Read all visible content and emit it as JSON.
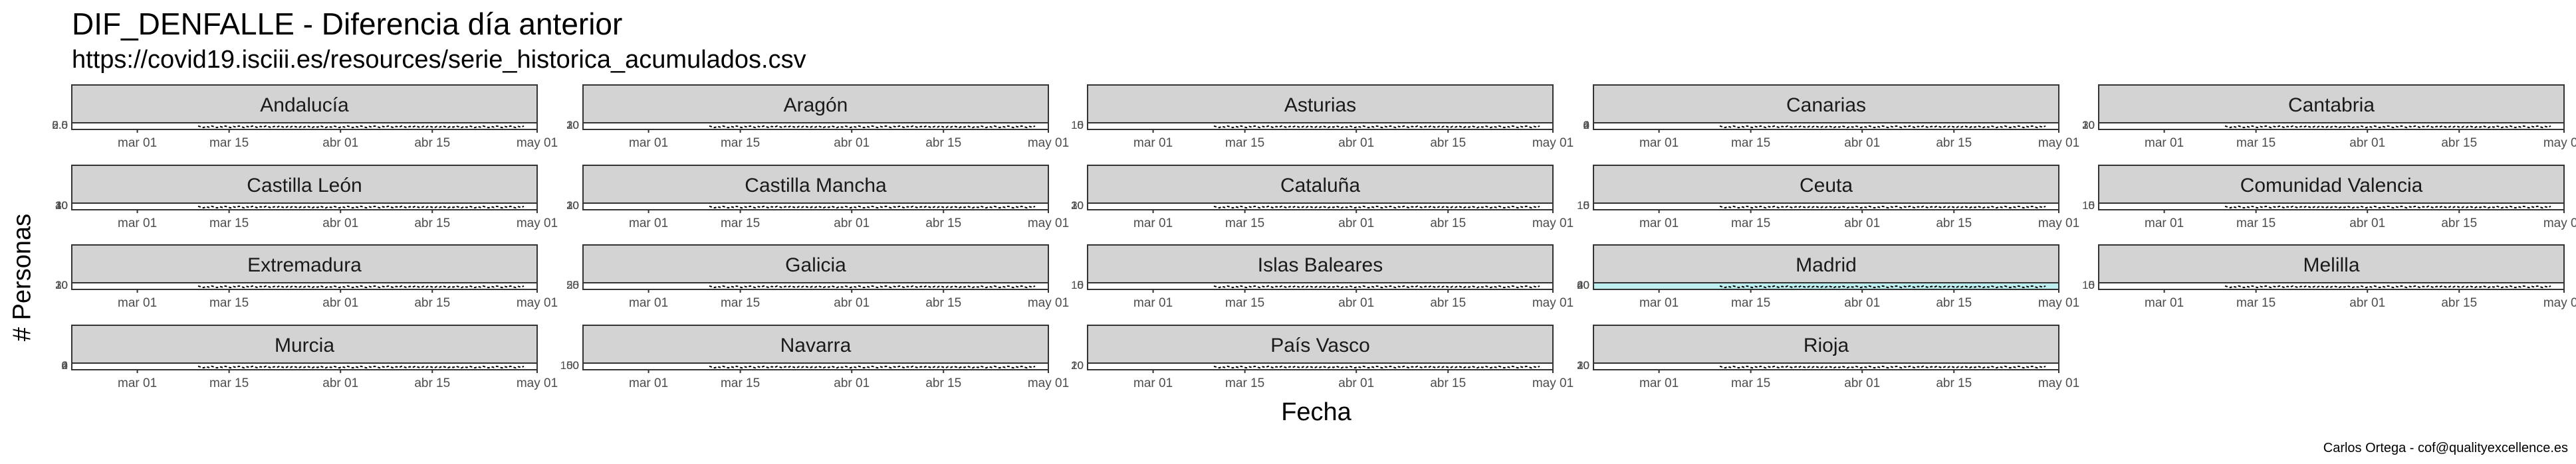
{
  "chart_data": {
    "type": "line",
    "title": "DIF_DENFALLE - Diferencia día anterior",
    "subtitle": "https://covid19.isciii.es/resources/serie_historica_acumulados.csv",
    "xlabel": "Fecha",
    "ylabel": "# Personas",
    "caption": "Carlos Ortega - cof@qualityexcellence.es",
    "x_ticks": [
      "mar 01",
      "mar 15",
      "abr 01",
      "abr 15",
      "may 01"
    ],
    "x_range": [
      "2020-02-20",
      "2020-05-01"
    ],
    "panel_fill": "#ffffff",
    "strip_fill": "#d3d3d3",
    "highlight_fill": "#bdeff0",
    "line_color": "#000000",
    "panels": [
      {
        "name": "Andalucía",
        "y_ticks": [
          "5.0",
          "2.5",
          "0.0"
        ],
        "highlight": false
      },
      {
        "name": "Aragón",
        "y_ticks": [
          "30",
          "20",
          "10",
          "0"
        ],
        "highlight": false
      },
      {
        "name": "Asturias",
        "y_ticks": [
          "10",
          "5",
          "0"
        ],
        "highlight": false
      },
      {
        "name": "Canarias",
        "y_ticks": [
          "6",
          "4",
          "2",
          "0"
        ],
        "highlight": false
      },
      {
        "name": "Cantabria",
        "y_ticks": [
          "30",
          "20",
          "10",
          "0"
        ],
        "highlight": false
      },
      {
        "name": "Castilla León",
        "y_ticks": [
          "40",
          "30",
          "20",
          "10",
          "0"
        ],
        "highlight": false
      },
      {
        "name": "Castilla Mancha",
        "y_ticks": [
          "30",
          "20",
          "10",
          "0"
        ],
        "highlight": false
      },
      {
        "name": "Cataluña",
        "y_ticks": [
          "30",
          "20",
          "10",
          "0"
        ],
        "highlight": false
      },
      {
        "name": "Ceuta",
        "y_ticks": [
          "10",
          "5",
          "0"
        ],
        "highlight": false
      },
      {
        "name": "Comunidad Valencia",
        "y_ticks": [
          "10",
          "5",
          "0"
        ],
        "highlight": false
      },
      {
        "name": "Extremadura",
        "y_ticks": [
          "30",
          "20",
          "10",
          "0"
        ],
        "highlight": false
      },
      {
        "name": "Galicia",
        "y_ticks": [
          "50",
          "25",
          "0"
        ],
        "highlight": false
      },
      {
        "name": "Islas Baleares",
        "y_ticks": [
          "10",
          "5",
          "0"
        ],
        "highlight": false
      },
      {
        "name": "Madrid",
        "y_ticks": [
          "60",
          "40",
          "20",
          "0"
        ],
        "highlight": true
      },
      {
        "name": "Melilla",
        "y_ticks": [
          "10",
          "5",
          "0"
        ],
        "highlight": false
      },
      {
        "name": "Murcia",
        "y_ticks": [
          "6",
          "4",
          "2",
          "0"
        ],
        "highlight": false
      },
      {
        "name": "Navarra",
        "y_ticks": [
          "100",
          "50",
          "0"
        ],
        "highlight": false
      },
      {
        "name": "País Vasco",
        "y_ticks": [
          "20",
          "10",
          "0"
        ],
        "highlight": false
      },
      {
        "name": "Rioja",
        "y_ticks": [
          "30",
          "20",
          "10",
          "0"
        ],
        "highlight": false
      }
    ]
  }
}
